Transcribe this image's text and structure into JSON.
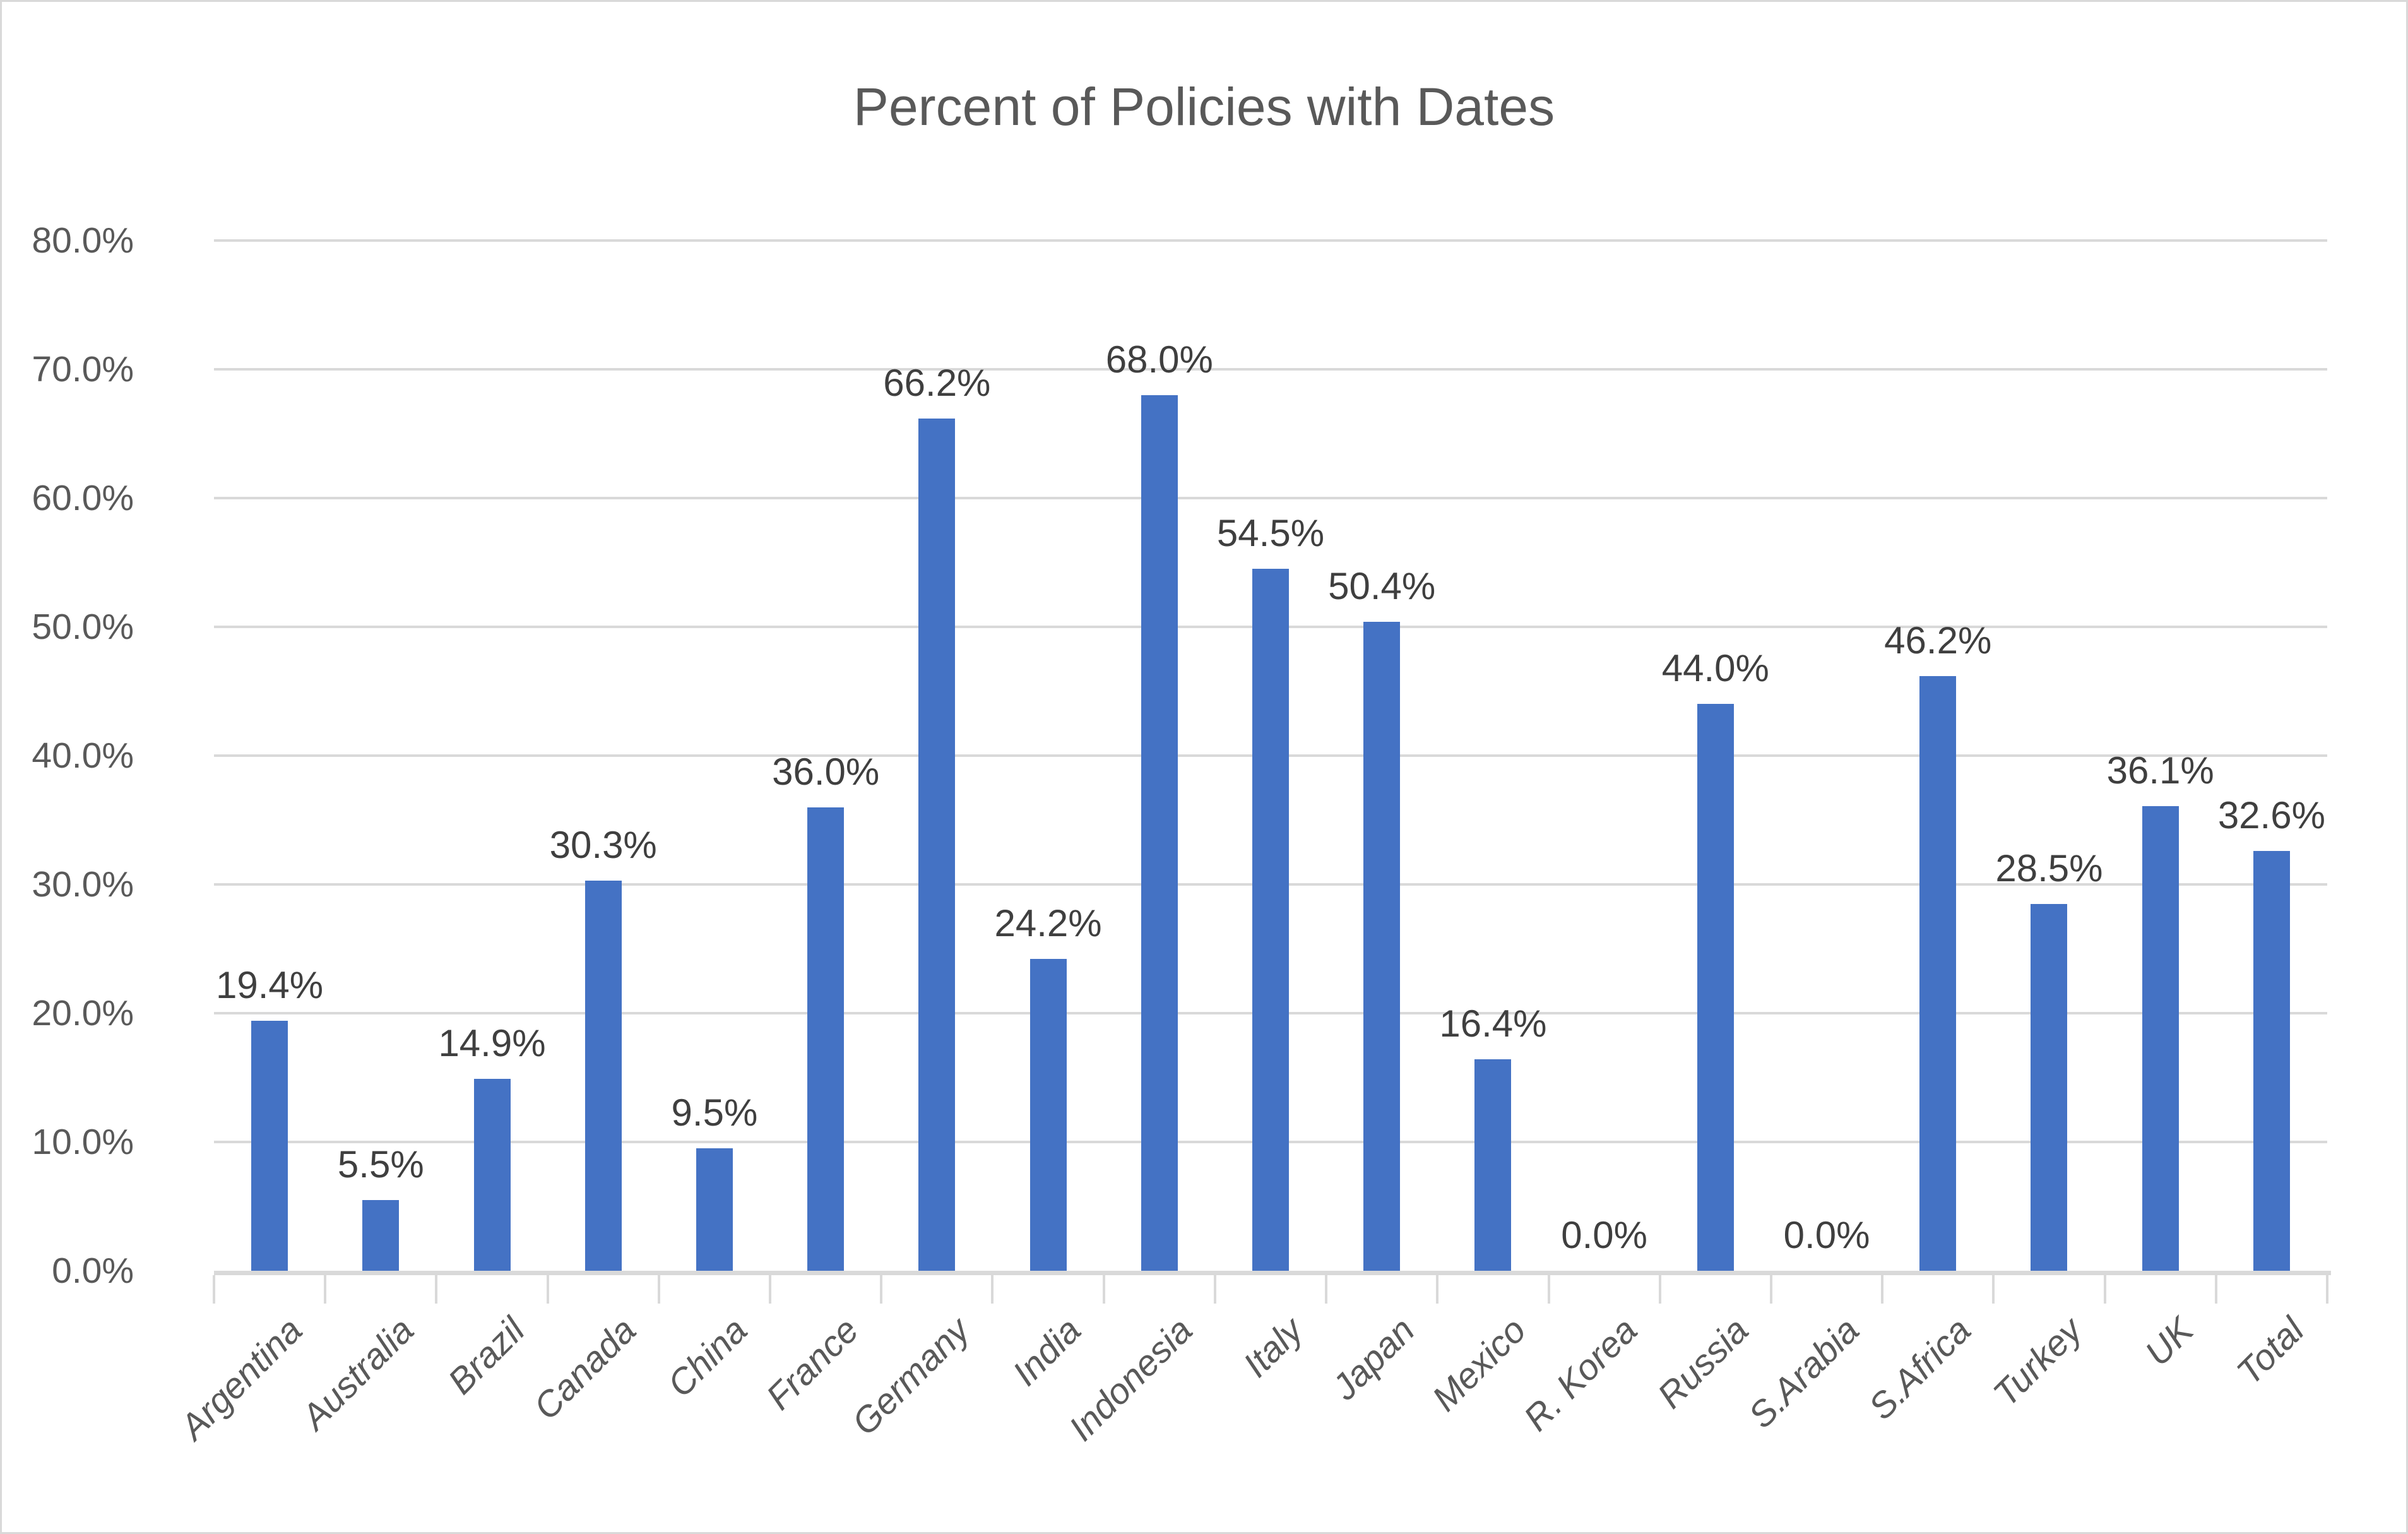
{
  "chart_data": {
    "type": "bar",
    "title": "Percent of Policies with Dates",
    "categories": [
      "Argentina",
      "Australia",
      "Brazil",
      "Canada",
      "China",
      "France",
      "Germany",
      "India",
      "Indonesia",
      "Italy",
      "Japan",
      "Mexico",
      "R. Korea",
      "Russia",
      "S.Arabia",
      "S.Africa",
      "Turkey",
      "UK",
      "Total"
    ],
    "values": [
      19.4,
      5.5,
      14.9,
      30.3,
      9.5,
      36.0,
      66.2,
      24.2,
      68.0,
      54.5,
      50.4,
      16.4,
      0.0,
      44.0,
      0.0,
      46.2,
      28.5,
      36.1,
      32.6
    ],
    "data_labels": [
      "19.4%",
      "5.5%",
      "14.9%",
      "30.3%",
      "9.5%",
      "36.0%",
      "66.2%",
      "24.2%",
      "68.0%",
      "54.5%",
      "50.4%",
      "16.4%",
      "0.0%",
      "44.0%",
      "0.0%",
      "46.2%",
      "28.5%",
      "36.1%",
      "32.6%"
    ],
    "y_tick_labels": [
      "80.0%",
      "70.0%",
      "60.0%",
      "50.0%",
      "40.0%",
      "30.0%",
      "20.0%",
      "10.0%",
      "0.0%"
    ],
    "ylim": [
      0,
      80
    ],
    "y_step": 10,
    "grid": true,
    "legend": "none",
    "xlabel": "",
    "ylabel": "",
    "colors": {
      "bar": "#4472C4",
      "gridline": "#D9D9D9",
      "axis_labels": "#595959",
      "data_labels": "#3F3F3F",
      "title": "#595959",
      "background": "#FFFFFF",
      "border": "#D9D9D9"
    }
  }
}
